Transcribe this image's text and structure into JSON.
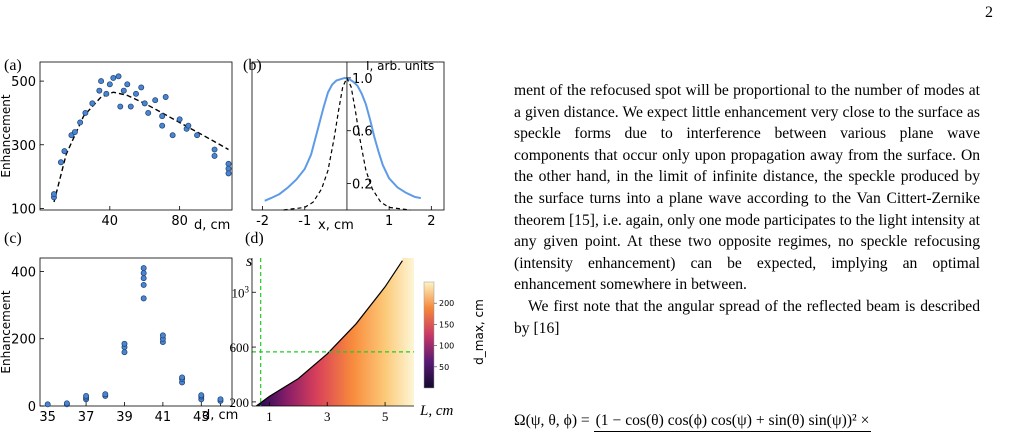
{
  "page_number": "2",
  "figure": {
    "panels": [
      {
        "label": "(a)",
        "ylabel": "Enhancement",
        "xunit": "d, cm"
      },
      {
        "label": "(b)",
        "ylabel": "I, arb. units",
        "xunit": "x, cm"
      },
      {
        "label": "(c)",
        "ylabel": "Enhancement",
        "xunit": "d, cm"
      },
      {
        "label": "(d)",
        "ylabel": "s",
        "xunit": "L, cm",
        "colorbar_label": "d_max, cm"
      }
    ],
    "colors": {
      "points": "#4a86d0",
      "line": "#5d9be8",
      "guide": "#22cc22"
    }
  },
  "chart_data": [
    {
      "panel": "(a)",
      "type": "scatter",
      "xlabel": "d, cm",
      "ylabel": "Enhancement",
      "xlim": [
        0,
        110
      ],
      "ylim": [
        95,
        560
      ],
      "xticks": [
        40,
        80
      ],
      "yticks": [
        100,
        300,
        500
      ],
      "points": [
        [
          8,
          135
        ],
        [
          8,
          145
        ],
        [
          12,
          245
        ],
        [
          14,
          280
        ],
        [
          18,
          330
        ],
        [
          20,
          340
        ],
        [
          23,
          370
        ],
        [
          26,
          400
        ],
        [
          30,
          430
        ],
        [
          34,
          470
        ],
        [
          35,
          500
        ],
        [
          38,
          460
        ],
        [
          40,
          490
        ],
        [
          42,
          510
        ],
        [
          45,
          515
        ],
        [
          46,
          420
        ],
        [
          48,
          470
        ],
        [
          50,
          490
        ],
        [
          52,
          420
        ],
        [
          55,
          460
        ],
        [
          58,
          480
        ],
        [
          60,
          430
        ],
        [
          62,
          400
        ],
        [
          66,
          440
        ],
        [
          70,
          390
        ],
        [
          70,
          360
        ],
        [
          72,
          450
        ],
        [
          76,
          330
        ],
        [
          80,
          380
        ],
        [
          84,
          350
        ],
        [
          85,
          360
        ],
        [
          90,
          330
        ],
        [
          100,
          285
        ],
        [
          100,
          265
        ],
        [
          108,
          240
        ],
        [
          108,
          225
        ],
        [
          108,
          210
        ]
      ],
      "fit": [
        [
          8,
          120
        ],
        [
          15,
          270
        ],
        [
          25,
          390
        ],
        [
          35,
          450
        ],
        [
          42,
          465
        ],
        [
          50,
          455
        ],
        [
          60,
          430
        ],
        [
          70,
          400
        ],
        [
          80,
          370
        ],
        [
          90,
          340
        ],
        [
          100,
          310
        ],
        [
          108,
          285
        ]
      ]
    },
    {
      "panel": "(b)",
      "type": "line",
      "xlabel": "x, cm",
      "ylabel": "I, arb. units",
      "xlim": [
        -2.25,
        2.3
      ],
      "ylim": [
        0,
        1.12
      ],
      "xticks": [
        -2,
        -1,
        1,
        2
      ],
      "yticks": [
        0.2,
        0.6,
        1.0
      ],
      "measured": [
        [
          -1.95,
          0.07
        ],
        [
          -1.8,
          0.09
        ],
        [
          -1.6,
          0.12
        ],
        [
          -1.4,
          0.17
        ],
        [
          -1.2,
          0.23
        ],
        [
          -1.0,
          0.31
        ],
        [
          -0.85,
          0.42
        ],
        [
          -0.7,
          0.6
        ],
        [
          -0.55,
          0.78
        ],
        [
          -0.45,
          0.89
        ],
        [
          -0.35,
          0.95
        ],
        [
          -0.25,
          0.98
        ],
        [
          -0.15,
          0.99
        ],
        [
          -0.05,
          1.0
        ],
        [
          0.05,
          0.99
        ],
        [
          0.15,
          0.97
        ],
        [
          0.25,
          0.94
        ],
        [
          0.35,
          0.88
        ],
        [
          0.45,
          0.8
        ],
        [
          0.55,
          0.68
        ],
        [
          0.65,
          0.55
        ],
        [
          0.75,
          0.44
        ],
        [
          0.85,
          0.34
        ],
        [
          1.0,
          0.24
        ],
        [
          1.2,
          0.17
        ],
        [
          1.4,
          0.13
        ],
        [
          1.6,
          0.1
        ],
        [
          1.75,
          0.09
        ]
      ],
      "model": [
        [
          -1.5,
          0
        ],
        [
          -1.0,
          0.02
        ],
        [
          -0.8,
          0.06
        ],
        [
          -0.6,
          0.16
        ],
        [
          -0.45,
          0.3
        ],
        [
          -0.3,
          0.55
        ],
        [
          -0.2,
          0.75
        ],
        [
          -0.1,
          0.93
        ],
        [
          0,
          1.0
        ],
        [
          0.1,
          0.93
        ],
        [
          0.2,
          0.75
        ],
        [
          0.3,
          0.55
        ],
        [
          0.45,
          0.3
        ],
        [
          0.6,
          0.16
        ],
        [
          0.8,
          0.06
        ],
        [
          1.0,
          0.02
        ],
        [
          1.5,
          0
        ]
      ]
    },
    {
      "panel": "(c)",
      "type": "scatter",
      "xlabel": "d, cm",
      "ylabel": "Enhancement",
      "xlim": [
        34.6,
        44.6
      ],
      "ylim": [
        0,
        440
      ],
      "xticks": [
        35,
        37,
        39,
        41,
        43
      ],
      "extra_xtick": 44,
      "yticks": [
        0,
        200,
        400
      ],
      "points": [
        [
          35,
          5
        ],
        [
          36,
          5
        ],
        [
          36,
          8
        ],
        [
          37,
          20
        ],
        [
          37,
          25
        ],
        [
          37,
          30
        ],
        [
          38,
          30
        ],
        [
          38,
          35
        ],
        [
          39,
          160
        ],
        [
          39,
          175
        ],
        [
          39,
          185
        ],
        [
          40,
          320
        ],
        [
          40,
          360
        ],
        [
          40,
          380
        ],
        [
          40,
          395
        ],
        [
          40,
          410
        ],
        [
          41,
          190
        ],
        [
          41,
          200
        ],
        [
          41,
          210
        ],
        [
          42,
          70
        ],
        [
          42,
          80
        ],
        [
          42,
          85
        ],
        [
          43,
          20
        ],
        [
          43,
          28
        ],
        [
          43,
          32
        ],
        [
          44,
          15
        ],
        [
          44,
          20
        ]
      ]
    },
    {
      "panel": "(d)",
      "type": "heatmap",
      "xlabel": "L, cm",
      "ylabel": "s",
      "xlim": [
        0.4,
        6
      ],
      "ylim": [
        170,
        1250
      ],
      "xticks": [
        1,
        3,
        5
      ],
      "yticks": [
        200,
        600,
        1000
      ],
      "ytick_labels": [
        "200",
        "600",
        "10^3"
      ],
      "colorbar": {
        "min": 0,
        "max": 250,
        "ticks": [
          50,
          100,
          150,
          200
        ],
        "label": "d_max, cm"
      },
      "boundary_curve": [
        [
          0.55,
          170
        ],
        [
          1,
          240
        ],
        [
          2,
          370
        ],
        [
          3,
          550
        ],
        [
          4,
          770
        ],
        [
          5,
          1040
        ],
        [
          5.6,
          1230
        ]
      ],
      "guide_lines": {
        "vertical_L": 0.7,
        "horizontal_s": 565
      }
    }
  ],
  "text": {
    "paragraphs": [
      "ment of the refocused spot will be proportional to the number of modes at a given distance. We expect little enhancement very close to the surface as speckle forms due to interference between various plane wave components that occur only upon propagation away from the surface. On the other hand, in the limit of infinite distance, the speckle produced by the surface turns into a plane wave according to the Van Cittert-Zernike theorem [15], i.e. again, only one mode participates to the light intensity at any given point. At these two opposite regimes, no speckle refocusing (intensity enhancement) can be expected, implying an optimal enhancement somewhere in between.",
      "We first note that the angular spread of the reflected beam is described by [16]"
    ],
    "equation_lhs": "Ω(ψ, θ, ϕ) =",
    "equation_numerator": "(1 − cos(θ) cos(ϕ) cos(ψ) + sin(θ) sin(ψ))² ×"
  }
}
